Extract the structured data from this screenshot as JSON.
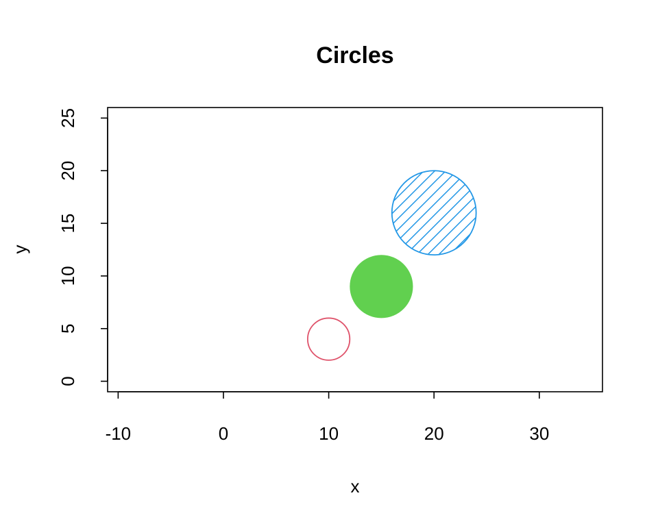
{
  "chart_data": {
    "type": "scatter",
    "title": "Circles",
    "xlabel": "x",
    "ylabel": "y",
    "xlim": [
      -11,
      36
    ],
    "ylim": [
      -1,
      26
    ],
    "xticks": [
      -10,
      0,
      10,
      20,
      30
    ],
    "xtick_labels": [
      "-10",
      "0",
      "10",
      "20",
      "30"
    ],
    "yticks": [
      0,
      5,
      10,
      15,
      20,
      25
    ],
    "ytick_labels": [
      "0",
      "5",
      "10",
      "15",
      "20",
      "25"
    ],
    "grid": false,
    "legend": "none",
    "circles": [
      {
        "x": 10,
        "y": 4,
        "radius": 2,
        "style": "outline",
        "color": "#DF536B"
      },
      {
        "x": 15,
        "y": 9,
        "radius": 3,
        "style": "filled",
        "color": "#61D04F"
      },
      {
        "x": 20,
        "y": 16,
        "radius": 4,
        "style": "hatched",
        "color": "#2297E6"
      }
    ]
  }
}
